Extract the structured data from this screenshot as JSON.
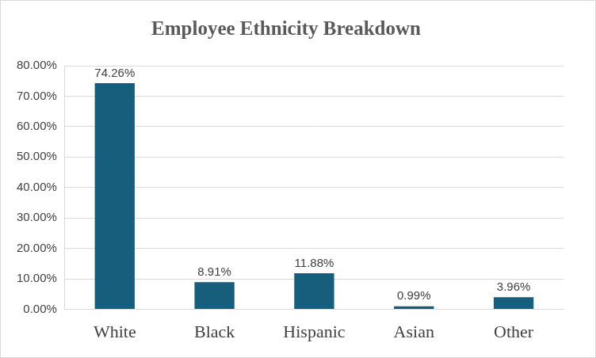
{
  "chart_data": {
    "type": "bar",
    "title": "Employee Ethnicity Breakdown",
    "categories": [
      "White",
      "Black",
      "Hispanic",
      "Asian",
      "Other"
    ],
    "values": [
      74.26,
      8.91,
      11.88,
      0.99,
      3.96
    ],
    "value_labels": [
      "74.26%",
      "8.91%",
      "11.88%",
      "0.99%",
      "3.96%"
    ],
    "color": "#175e7c",
    "ylim": [
      0,
      80
    ],
    "yticks": [
      {
        "value": 0,
        "label": "0.00%"
      },
      {
        "value": 10,
        "label": "10.00%"
      },
      {
        "value": 20,
        "label": "20.00%"
      },
      {
        "value": 30,
        "label": "30.00%"
      },
      {
        "value": 40,
        "label": "40.00%"
      },
      {
        "value": 50,
        "label": "50.00%"
      },
      {
        "value": 60,
        "label": "60.00%"
      },
      {
        "value": 70,
        "label": "70.00%"
      },
      {
        "value": 80,
        "label": "80.00%"
      }
    ],
    "grid": true,
    "data_labels": true
  }
}
